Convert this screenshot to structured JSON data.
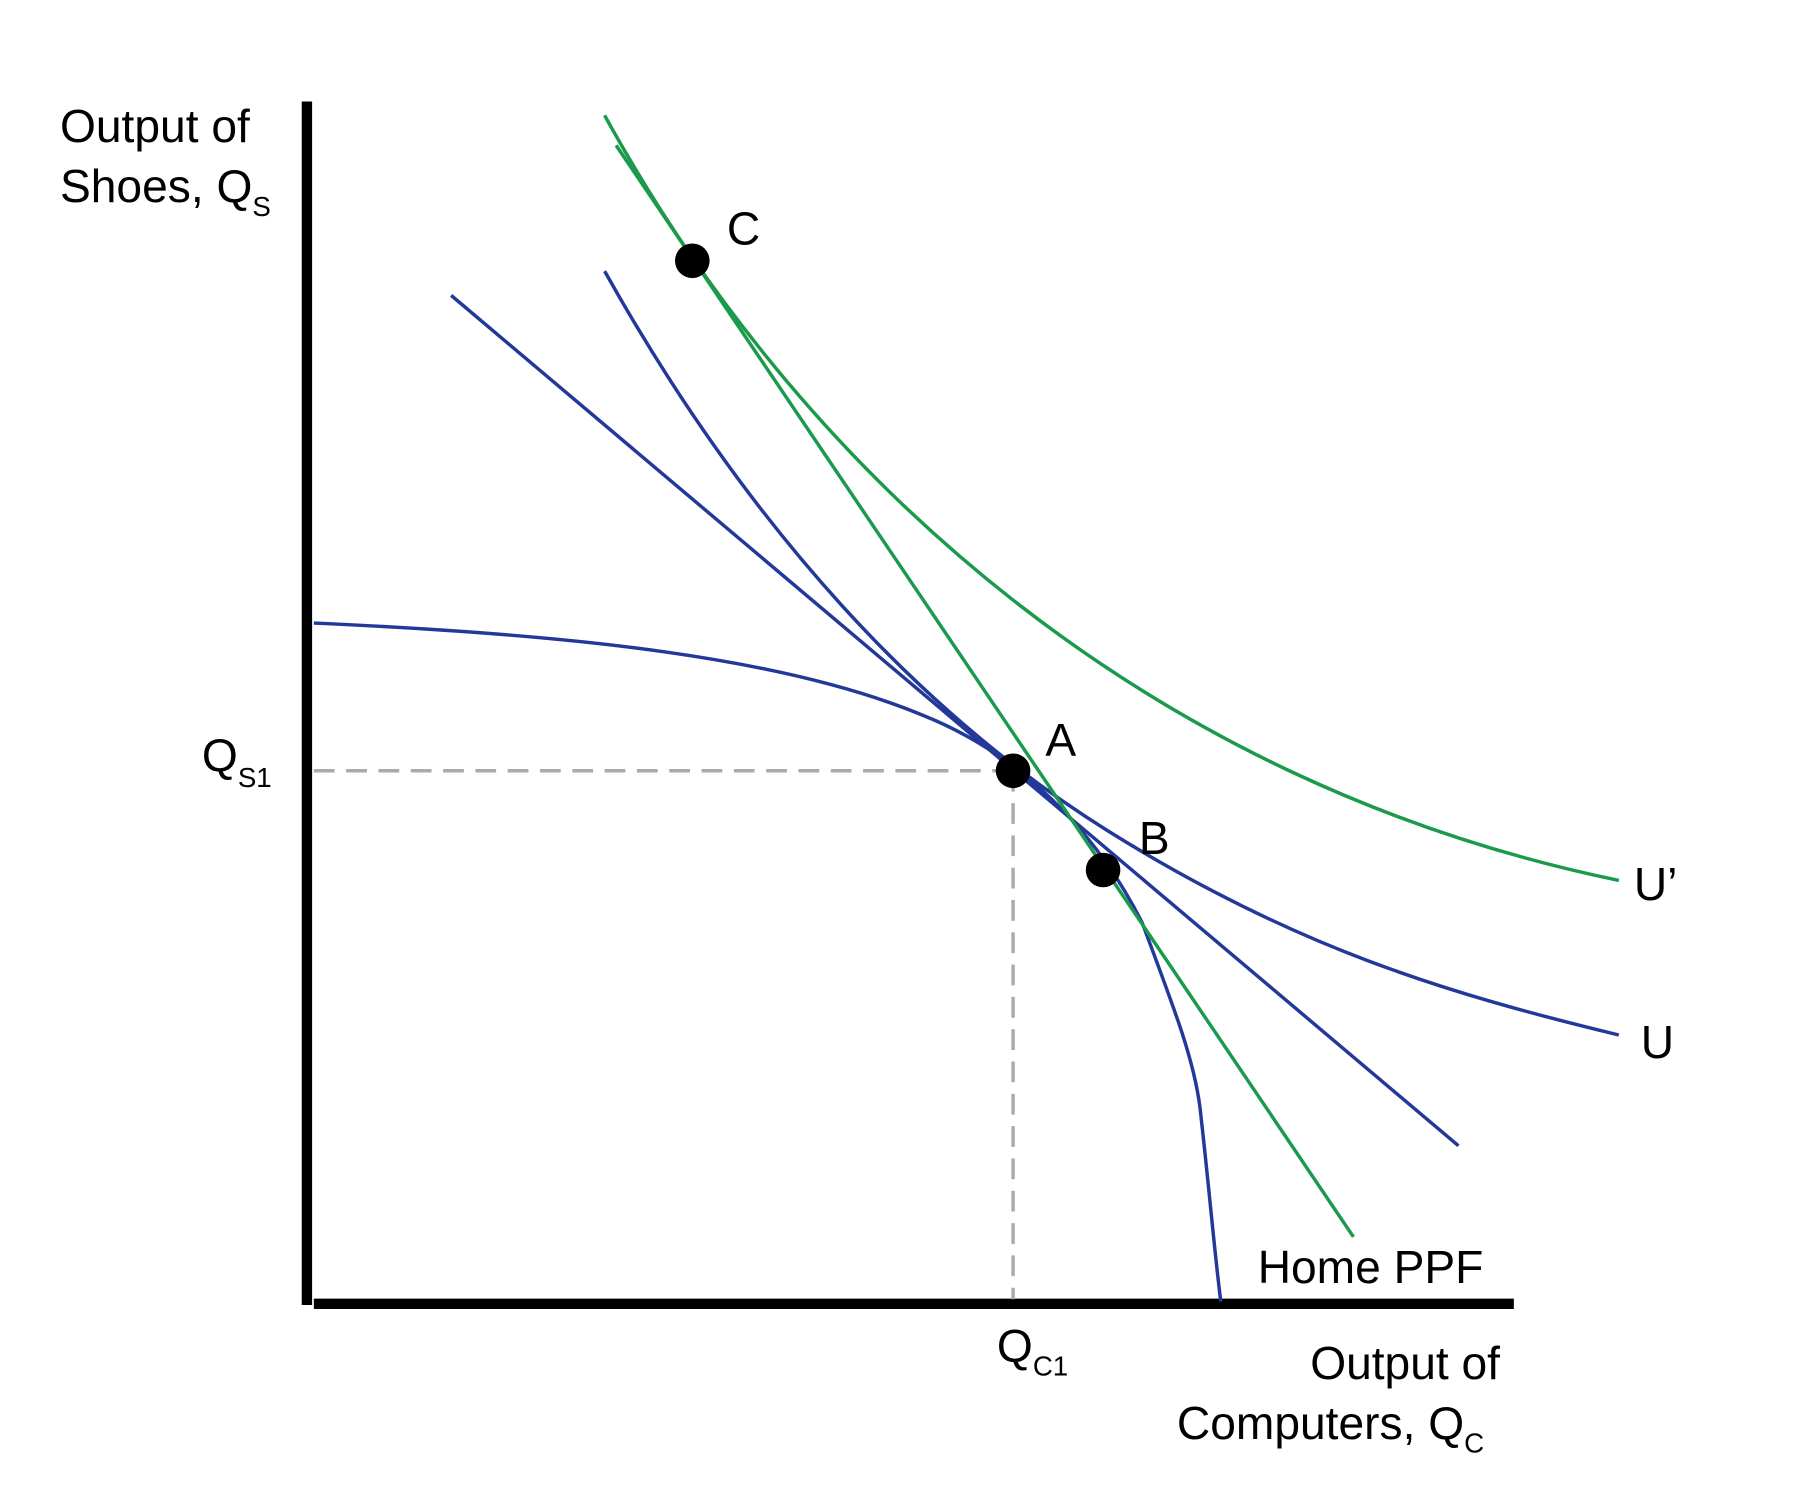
{
  "y_axis_label": {
    "line1": "Output of",
    "line2": "Shoes, Q",
    "sub": "S"
  },
  "x_axis_label": {
    "line1": "Output of",
    "line2": "Computers, Q",
    "sub": "C"
  },
  "y_marker": {
    "main": "Q",
    "sub": "S1"
  },
  "x_marker": {
    "main": "Q",
    "sub": "C1"
  },
  "curve_labels": {
    "u_prime": "U’",
    "u": "U",
    "ppf": "Home PPF"
  },
  "points": {
    "a": "A",
    "b": "B",
    "c": "C"
  }
}
